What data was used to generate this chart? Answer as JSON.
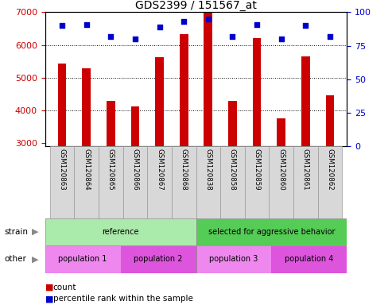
{
  "title": "GDS2399 / 151567_at",
  "samples": [
    "GSM120863",
    "GSM120864",
    "GSM120865",
    "GSM120866",
    "GSM120867",
    "GSM120868",
    "GSM120838",
    "GSM120858",
    "GSM120859",
    "GSM120860",
    "GSM120861",
    "GSM120862"
  ],
  "counts": [
    5430,
    5280,
    4300,
    4120,
    5620,
    6340,
    6980,
    4280,
    6200,
    3760,
    5660,
    4460
  ],
  "percentile_ranks": [
    90,
    91,
    82,
    80,
    89,
    93,
    95,
    82,
    91,
    80,
    90,
    82
  ],
  "ylim_left": [
    2900,
    7000
  ],
  "ylim_right": [
    0,
    100
  ],
  "yticks_left": [
    3000,
    4000,
    5000,
    6000,
    7000
  ],
  "yticks_right": [
    0,
    25,
    50,
    75,
    100
  ],
  "bar_color": "#cc0000",
  "dot_color": "#0000cc",
  "bar_width": 0.35,
  "strain_groups": [
    {
      "label": "reference",
      "start": 0,
      "end": 6,
      "color": "#aaeaaa"
    },
    {
      "label": "selected for aggressive behavior",
      "start": 6,
      "end": 12,
      "color": "#55cc55"
    }
  ],
  "other_groups": [
    {
      "label": "population 1",
      "start": 0,
      "end": 3,
      "color": "#ee88ee"
    },
    {
      "label": "population 2",
      "start": 3,
      "end": 6,
      "color": "#dd55dd"
    },
    {
      "label": "population 3",
      "start": 6,
      "end": 9,
      "color": "#ee88ee"
    },
    {
      "label": "population 4",
      "start": 9,
      "end": 12,
      "color": "#dd55dd"
    }
  ],
  "bg_color": "#ffffff",
  "plot_bg_color": "#ffffff",
  "tick_label_color_left": "#cc0000",
  "tick_label_color_right": "#0000cc",
  "grid_color": "#000000",
  "spine_color": "#000000",
  "xlabel_bg": "#d8d8d8",
  "xlabel_border": "#999999"
}
